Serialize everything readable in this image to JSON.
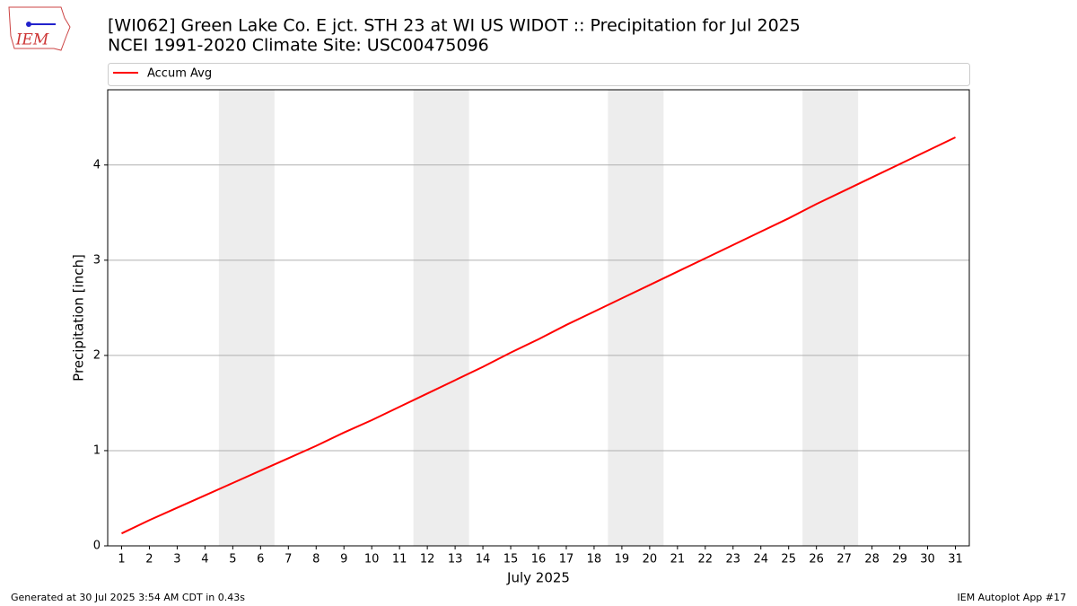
{
  "chart_data": {
    "type": "line",
    "title": "[WI062] Green Lake Co. E jct. STH 23 at  WI US WIDOT :: Precipitation for Jul 2025",
    "subtitle": "NCEI 1991-2020 Climate Site: USC00475096",
    "x_label": "July 2025",
    "y_label": "Precipitation [inch]",
    "x": [
      1,
      2,
      3,
      4,
      5,
      6,
      7,
      8,
      9,
      10,
      11,
      12,
      13,
      14,
      15,
      16,
      17,
      18,
      19,
      20,
      21,
      22,
      23,
      24,
      25,
      26,
      27,
      28,
      29,
      30,
      31
    ],
    "series": [
      {
        "name": "Accum Avg",
        "color": "#ff0000",
        "values": [
          0.13,
          0.27,
          0.4,
          0.53,
          0.66,
          0.79,
          0.92,
          1.05,
          1.19,
          1.32,
          1.46,
          1.6,
          1.74,
          1.88,
          2.03,
          2.17,
          2.32,
          2.46,
          2.6,
          2.74,
          2.88,
          3.02,
          3.16,
          3.3,
          3.44,
          3.59,
          3.73,
          3.87,
          4.01,
          4.15,
          4.29
        ]
      }
    ],
    "shaded_x": [
      [
        4.5,
        6.5
      ],
      [
        11.5,
        13.5
      ],
      [
        18.5,
        20.5
      ],
      [
        25.5,
        27.5
      ]
    ],
    "shade_color": "#ededed",
    "xlim": [
      0.5,
      31.5
    ],
    "xticks": [
      1,
      2,
      3,
      4,
      5,
      6,
      7,
      8,
      9,
      10,
      11,
      12,
      13,
      14,
      15,
      16,
      17,
      18,
      19,
      20,
      21,
      22,
      23,
      24,
      25,
      26,
      27,
      28,
      29,
      30,
      31
    ],
    "ylim": [
      0,
      4.79
    ],
    "yticks": [
      0,
      1,
      2,
      3,
      4
    ],
    "grid": true,
    "legend": "top"
  },
  "logo_text": "IEM",
  "footer": {
    "left": "Generated at 30 Jul 2025 3:54 AM CDT in 0.43s",
    "right": "IEM Autoplot App #17"
  }
}
